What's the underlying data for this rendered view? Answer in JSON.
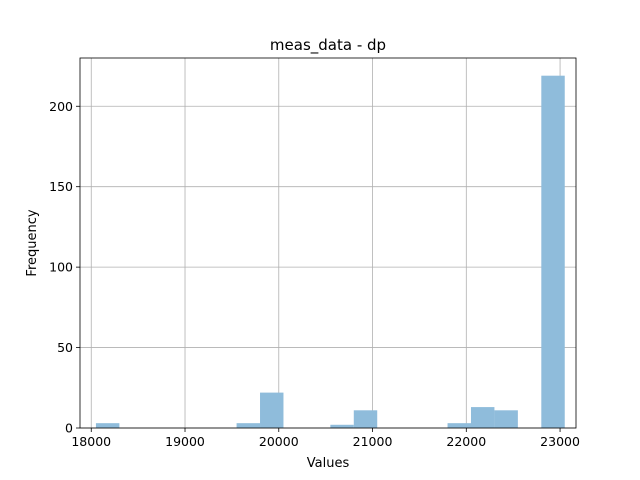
{
  "chart_data": {
    "type": "bar",
    "title": "meas_data - dp",
    "xlabel": "Values",
    "ylabel": "Frequency",
    "xlim": [
      17880,
      23170
    ],
    "ylim": [
      0,
      230
    ],
    "xticks": [
      18000,
      19000,
      20000,
      21000,
      22000,
      23000
    ],
    "yticks": [
      0,
      50,
      100,
      150,
      200
    ],
    "grid": true,
    "bar_color": "#8fbcdb",
    "bins": [
      {
        "x0": 18050,
        "x1": 18300,
        "count": 3
      },
      {
        "x0": 19550,
        "x1": 19800,
        "count": 3
      },
      {
        "x0": 19800,
        "x1": 20050,
        "count": 22
      },
      {
        "x0": 20550,
        "x1": 20800,
        "count": 2
      },
      {
        "x0": 20800,
        "x1": 21050,
        "count": 11
      },
      {
        "x0": 21800,
        "x1": 22050,
        "count": 3
      },
      {
        "x0": 22050,
        "x1": 22300,
        "count": 13
      },
      {
        "x0": 22300,
        "x1": 22550,
        "count": 11
      },
      {
        "x0": 22800,
        "x1": 23050,
        "count": 219
      }
    ]
  }
}
